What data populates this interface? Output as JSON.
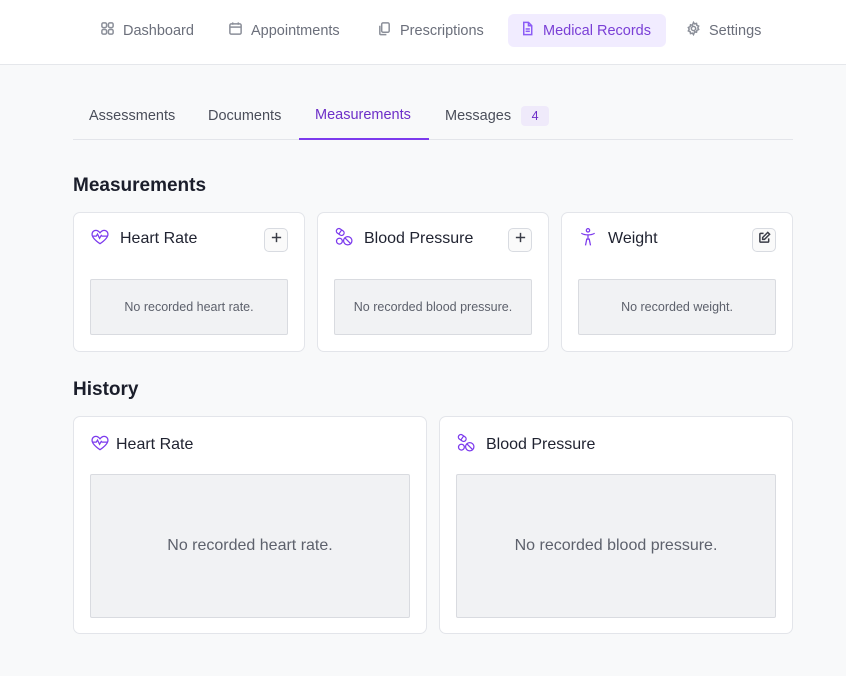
{
  "nav": {
    "items": [
      {
        "label": "Dashboard",
        "icon": "grid-icon"
      },
      {
        "label": "Appointments",
        "icon": "calendar-icon"
      },
      {
        "label": "Prescriptions",
        "icon": "copy-icon"
      },
      {
        "label": "Medical Records",
        "icon": "file-icon",
        "active": true
      },
      {
        "label": "Settings",
        "icon": "gear-icon"
      }
    ]
  },
  "tabs": {
    "items": [
      {
        "label": "Assessments"
      },
      {
        "label": "Documents"
      },
      {
        "label": "Measurements",
        "active": true
      },
      {
        "label": "Messages",
        "badge": "4"
      }
    ]
  },
  "measurements": {
    "title": "Measurements",
    "cards": [
      {
        "title": "Heart Rate",
        "empty": "No recorded heart rate.",
        "icon": "heart-pulse-icon",
        "action_icon": "plus-icon"
      },
      {
        "title": "Blood Pressure",
        "empty": "No recorded blood pressure.",
        "icon": "pills-icon",
        "action_icon": "plus-icon"
      },
      {
        "title": "Weight",
        "empty": "No recorded weight.",
        "icon": "person-icon",
        "action_icon": "edit-icon"
      }
    ]
  },
  "history": {
    "title": "History",
    "cards": [
      {
        "title": "Heart Rate",
        "empty": "No recorded heart rate.",
        "icon": "heart-pulse-icon"
      },
      {
        "title": "Blood Pressure",
        "empty": "No recorded blood pressure.",
        "icon": "pills-icon"
      }
    ]
  },
  "colors": {
    "accent": "#7c3aed",
    "active_nav_bg": "#f1ecff",
    "page_bg": "#f8f9fa"
  }
}
